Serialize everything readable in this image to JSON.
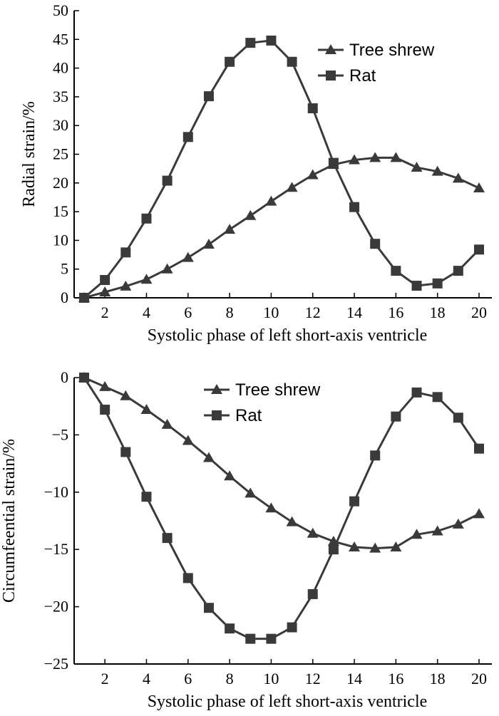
{
  "chart_data": [
    {
      "type": "line",
      "ylabel": "Radial strain/%",
      "xlabel": "Systolic phase of left short-axis ventricle",
      "xlim": [
        1,
        20
      ],
      "ylim": [
        0,
        50
      ],
      "xticks": [
        2,
        4,
        6,
        8,
        10,
        12,
        14,
        16,
        18,
        20
      ],
      "yticks": [
        0,
        5,
        10,
        15,
        20,
        25,
        30,
        35,
        40,
        45,
        50
      ],
      "legend_position": "top-right",
      "x": [
        1,
        2,
        3,
        4,
        5,
        6,
        7,
        8,
        9,
        10,
        11,
        12,
        13,
        14,
        15,
        16,
        17,
        18,
        19,
        20
      ],
      "series": [
        {
          "name": "Tree shrew",
          "marker": "triangle",
          "values": [
            0,
            1.0,
            2.0,
            3.2,
            5.0,
            7.0,
            9.3,
            11.9,
            14.3,
            16.8,
            19.2,
            21.4,
            23.2,
            24.0,
            24.4,
            24.4,
            22.7,
            22.0,
            20.8,
            19.1
          ]
        },
        {
          "name": "Rat",
          "marker": "square",
          "values": [
            0,
            3.1,
            7.9,
            13.8,
            20.4,
            28.0,
            35.1,
            41.1,
            44.4,
            44.8,
            41.1,
            33.0,
            23.5,
            15.8,
            9.4,
            4.7,
            2.1,
            2.5,
            4.7,
            8.4
          ]
        }
      ]
    },
    {
      "type": "line",
      "ylabel": "Circumfeential strain/%",
      "xlabel": "Systolic phase of left short-axis ventricle",
      "xlim": [
        1,
        20
      ],
      "ylim": [
        -25,
        0
      ],
      "xticks": [
        2,
        4,
        6,
        8,
        10,
        12,
        14,
        16,
        18,
        20
      ],
      "yticks": [
        0,
        -5,
        -10,
        -15,
        -20,
        -25
      ],
      "ytick_labels": [
        "0",
        "−5",
        "−10",
        "−15",
        "−20",
        "−25"
      ],
      "legend_position": "top-center",
      "x": [
        1,
        2,
        3,
        4,
        5,
        6,
        7,
        8,
        9,
        10,
        11,
        12,
        13,
        14,
        15,
        16,
        17,
        18,
        19,
        20
      ],
      "series": [
        {
          "name": "Tree shrew",
          "marker": "triangle",
          "values": [
            0,
            -0.8,
            -1.6,
            -2.8,
            -4.1,
            -5.5,
            -7.0,
            -8.6,
            -10.1,
            -11.4,
            -12.6,
            -13.6,
            -14.3,
            -14.8,
            -14.9,
            -14.8,
            -13.7,
            -13.4,
            -12.8,
            -11.9
          ]
        },
        {
          "name": "Rat",
          "marker": "square",
          "values": [
            0,
            -2.8,
            -6.5,
            -10.4,
            -14.0,
            -17.5,
            -20.1,
            -21.9,
            -22.8,
            -22.8,
            -21.8,
            -18.9,
            -15.0,
            -10.8,
            -6.8,
            -3.4,
            -1.3,
            -1.7,
            -3.5,
            -6.2
          ]
        }
      ]
    }
  ]
}
